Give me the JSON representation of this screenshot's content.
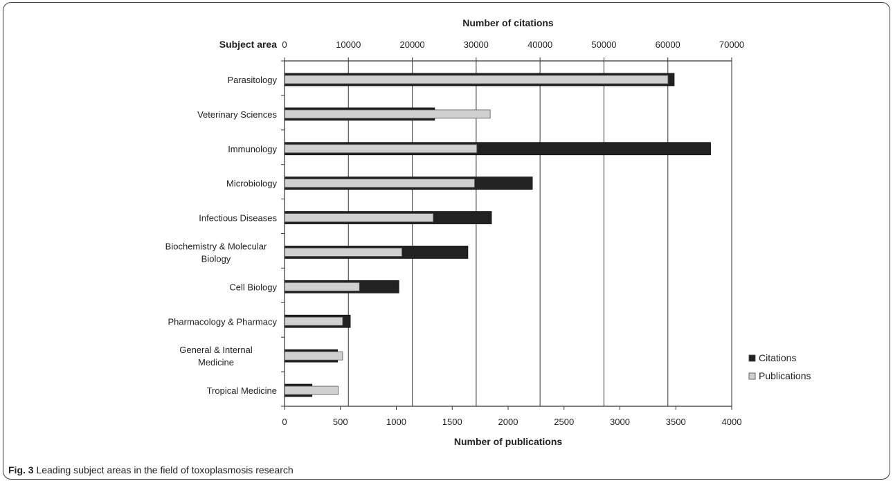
{
  "figure": {
    "label": "Fig. 3",
    "caption": "Leading subject areas in the field of toxoplasmosis research"
  },
  "chart_data": {
    "type": "bar",
    "orientation": "horizontal",
    "category_axis_label": "Subject area",
    "categories": [
      "Parasitology",
      "Veterinary Sciences",
      "Immunology",
      "Microbiology",
      "Infectious Diseases",
      "Biochemistry & Molecular Biology",
      "Cell Biology",
      "Pharmacology & Pharmacy",
      "General & Internal Medicine",
      "Tropical Medicine"
    ],
    "top_axis": {
      "label": "Number of citations",
      "range": [
        0,
        70000
      ],
      "ticks": [
        0,
        10000,
        20000,
        30000,
        40000,
        50000,
        60000,
        70000
      ]
    },
    "bottom_axis": {
      "label": "Number of publications",
      "range": [
        0,
        4000
      ],
      "ticks": [
        0,
        500,
        1000,
        1500,
        2000,
        2500,
        3000,
        3500,
        4000
      ]
    },
    "series": [
      {
        "name": "Citations",
        "axis": "top",
        "color": "#222222",
        "values": [
          61000,
          23500,
          66700,
          38800,
          32400,
          28700,
          17900,
          10300,
          8300,
          4300
        ]
      },
      {
        "name": "Publications",
        "axis": "bottom",
        "color": "#d0d0d0",
        "values": [
          3430,
          1840,
          1720,
          1700,
          1330,
          1050,
          670,
          520,
          520,
          480
        ]
      }
    ],
    "grid": "vertical",
    "legend_position": "right-bottom"
  }
}
